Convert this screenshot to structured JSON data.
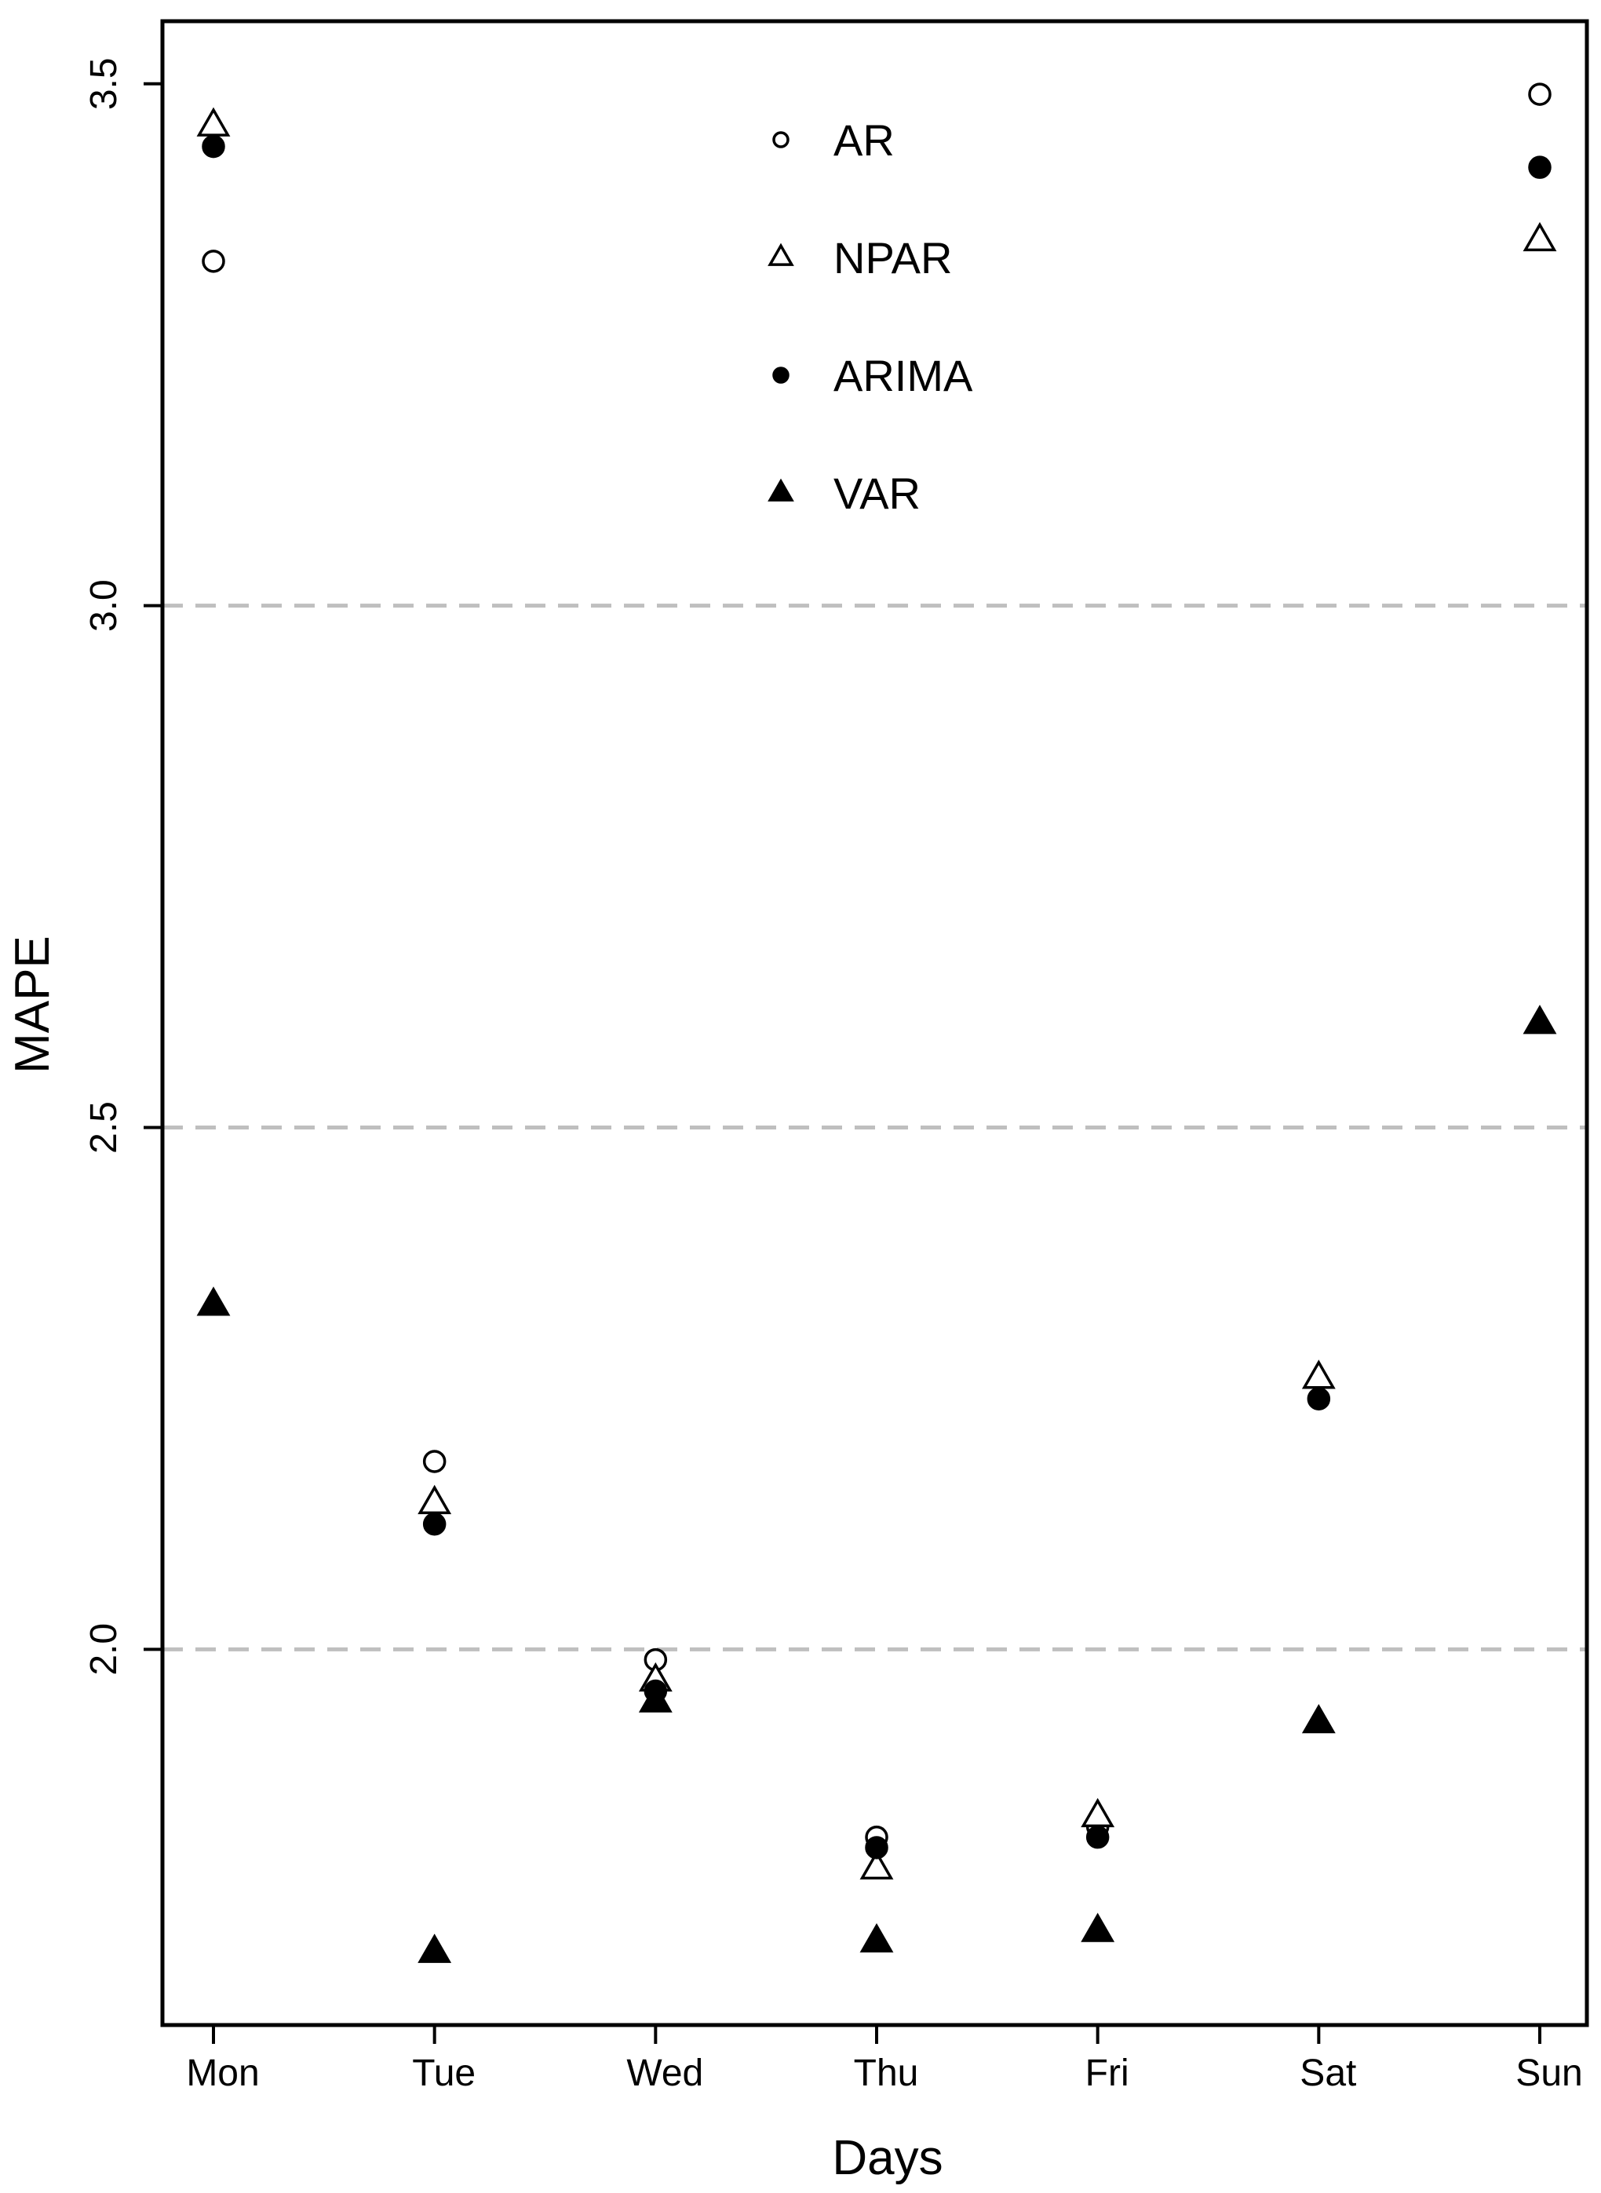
{
  "chart_data": {
    "type": "scatter",
    "title": "",
    "xlabel": "Days",
    "ylabel": "MAPE",
    "categories": [
      "Mon",
      "Tue",
      "Wed",
      "Thu",
      "Fri",
      "Sat",
      "Sun"
    ],
    "yticks": [
      "2.0",
      "2.5",
      "3.0",
      "3.5"
    ],
    "ylim": [
      1.64,
      3.56
    ],
    "grid": "horizontal dashed at 2.0, 2.5, 3.0",
    "legend_position": "top-center",
    "series": [
      {
        "name": "AR",
        "marker": "open-circle",
        "values": [
          3.33,
          2.18,
          1.99,
          1.82,
          1.83,
          null,
          3.49
        ]
      },
      {
        "name": "NPAR",
        "marker": "open-triangle",
        "values": [
          3.46,
          2.14,
          1.97,
          1.79,
          1.84,
          2.26,
          3.35
        ]
      },
      {
        "name": "ARIMA",
        "marker": "filled-circle",
        "values": [
          3.44,
          2.12,
          1.96,
          1.81,
          1.82,
          2.24,
          3.42
        ]
      },
      {
        "name": "VAR",
        "marker": "filled-triangle",
        "values": [
          2.33,
          1.71,
          1.95,
          1.72,
          1.73,
          1.93,
          2.6
        ]
      }
    ]
  }
}
